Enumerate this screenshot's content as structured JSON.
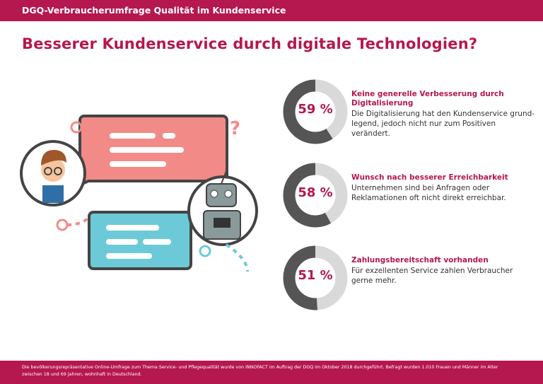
{
  "header": {
    "title": "DGQ-Verbraucherumfrage Qualität im Kundenservice"
  },
  "page_title": "Besserer Kundenservice durch digitale Technologien?",
  "colors": {
    "brand": "#b5174f",
    "donut_dark": "#555555",
    "donut_light": "#d9d9d9",
    "bubble_red": "#f28b87",
    "bubble_blue": "#6ccad8"
  },
  "stats": [
    {
      "percent": 59,
      "label": "59 %",
      "heading": "Keine generelle Verbesserung durch Digitalisierung",
      "text": "Die Digitalisierung hat den Kundenservice grund-legend, jedoch nicht nur zum Positiven verändert."
    },
    {
      "percent": 58,
      "label": "58 %",
      "heading": "Wunsch nach besserer Erreichbarkeit",
      "text": "Unternehmen sind bei Anfragen oder Reklamationen oft nicht direkt erreichbar."
    },
    {
      "percent": 51,
      "label": "51 %",
      "heading": "Zahlungsbereitschaft vorhanden",
      "text": "Für exzellenten Service zahlen Verbraucher gerne mehr."
    }
  ],
  "illustration": {
    "icons": [
      "person-avatar-icon",
      "robot-avatar-icon",
      "speech-bubble-icon",
      "question-mark-icon"
    ]
  },
  "footer": {
    "text": "Die bevölkerungsrepräsentative Online-Umfrage zum Thema Service- und Pflegequalität wurde von INNOFACT im Auftrag der DGQ im Oktober 2018 durchgeführt. Befragt wurden 1.010 Frauen und Männer im Alter zwischen 18 und 69 Jahren, wohnhaft in Deutschland."
  }
}
